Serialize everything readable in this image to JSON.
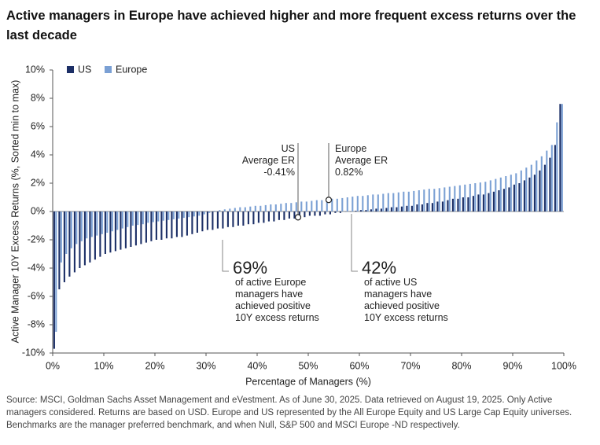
{
  "chart_data": {
    "type": "bar",
    "title": "Active managers in Europe have achieved higher and more frequent excess returns over the last decade",
    "footnote": "Source: MSCI, Goldman Sachs Asset Management and eVestment. As of June 30, 2025. Data retrieved on August 19, 2025. Only Active managers considered. Returns are based on USD. Europe and US represented by the All Europe Equity and US Large Cap Equity universes. Benchmarks are the manager preferred benchmark, and when Null, S&P 500 and MSCI Europe -ND respectively.",
    "x_label": "Percentage of Managers (%)",
    "y_label": "Active Manager 10Y Excess Returns (%, Sorted min to max)",
    "legend": "top-left",
    "xlim": [
      0,
      100
    ],
    "xticks": [
      {
        "value": 0,
        "label": "0%"
      },
      {
        "value": 10,
        "label": "10%"
      },
      {
        "value": 20,
        "label": "20%"
      },
      {
        "value": 30,
        "label": "30%"
      },
      {
        "value": 40,
        "label": "40%"
      },
      {
        "value": 50,
        "label": "50%"
      },
      {
        "value": 60,
        "label": "60%"
      },
      {
        "value": 70,
        "label": "70%"
      },
      {
        "value": 80,
        "label": "80%"
      },
      {
        "value": 90,
        "label": "90%"
      },
      {
        "value": 100,
        "label": "100%"
      }
    ],
    "ylim": [
      -10,
      10
    ],
    "yticks": [
      {
        "value": -10,
        "label": "-10%"
      },
      {
        "value": -8,
        "label": "-8%"
      },
      {
        "value": -6,
        "label": "-6%"
      },
      {
        "value": -4,
        "label": "-4%"
      },
      {
        "value": -2,
        "label": "-2%"
      },
      {
        "value": 0,
        "label": "0%"
      },
      {
        "value": 2,
        "label": "2%"
      },
      {
        "value": 4,
        "label": "4%"
      },
      {
        "value": 6,
        "label": "6%"
      },
      {
        "value": 8,
        "label": "8%"
      },
      {
        "value": 10,
        "label": "10%"
      }
    ],
    "x": [
      0.5,
      1.5,
      2.5,
      3.5,
      4.5,
      5.5,
      6.5,
      7.5,
      8.5,
      9.5,
      10.5,
      11.5,
      12.5,
      13.5,
      14.5,
      15.5,
      16.5,
      17.5,
      18.5,
      19.5,
      20.5,
      21.5,
      22.5,
      23.5,
      24.5,
      25.5,
      26.5,
      27.5,
      28.5,
      29.5,
      30.5,
      31.5,
      32.5,
      33.5,
      34.5,
      35.5,
      36.5,
      37.5,
      38.5,
      39.5,
      40.5,
      41.5,
      42.5,
      43.5,
      44.5,
      45.5,
      46.5,
      47.5,
      48.5,
      49.5,
      50.5,
      51.5,
      52.5,
      53.5,
      54.5,
      55.5,
      56.5,
      57.5,
      58.5,
      59.5,
      60.5,
      61.5,
      62.5,
      63.5,
      64.5,
      65.5,
      66.5,
      67.5,
      68.5,
      69.5,
      70.5,
      71.5,
      72.5,
      73.5,
      74.5,
      75.5,
      76.5,
      77.5,
      78.5,
      79.5,
      80.5,
      81.5,
      82.5,
      83.5,
      84.5,
      85.5,
      86.5,
      87.5,
      88.5,
      89.5,
      90.5,
      91.5,
      92.5,
      93.5,
      94.5,
      95.5,
      96.5,
      97.5,
      98.5,
      99.5
    ],
    "series": [
      {
        "name": "US",
        "color": "#1c2f66",
        "values": [
          -9.7,
          -5.5,
          -5.0,
          -4.6,
          -4.3,
          -4.0,
          -3.8,
          -3.6,
          -3.4,
          -3.2,
          -3.0,
          -2.9,
          -2.8,
          -2.7,
          -2.6,
          -2.5,
          -2.4,
          -2.3,
          -2.2,
          -2.1,
          -2.0,
          -2.0,
          -1.9,
          -1.9,
          -1.8,
          -1.8,
          -1.7,
          -1.6,
          -1.5,
          -1.4,
          -1.3,
          -1.3,
          -1.2,
          -1.2,
          -1.1,
          -1.1,
          -1.0,
          -1.0,
          -0.9,
          -0.9,
          -0.8,
          -0.8,
          -0.7,
          -0.7,
          -0.6,
          -0.6,
          -0.5,
          -0.5,
          -0.4,
          -0.4,
          -0.3,
          -0.3,
          -0.3,
          -0.2,
          -0.2,
          -0.1,
          -0.1,
          0.0,
          0.0,
          0.05,
          0.1,
          0.1,
          0.15,
          0.2,
          0.2,
          0.25,
          0.3,
          0.3,
          0.35,
          0.4,
          0.4,
          0.5,
          0.5,
          0.6,
          0.6,
          0.7,
          0.7,
          0.8,
          0.9,
          0.9,
          1.0,
          1.0,
          1.1,
          1.2,
          1.2,
          1.3,
          1.4,
          1.5,
          1.6,
          1.7,
          1.9,
          2.0,
          2.2,
          2.4,
          2.6,
          2.9,
          3.3,
          3.8,
          4.7,
          7.6
        ]
      },
      {
        "name": "Europe",
        "color": "#7ba0d4",
        "values": [
          -8.5,
          -3.6,
          -3.0,
          -2.6,
          -2.3,
          -2.1,
          -1.9,
          -1.8,
          -1.7,
          -1.6,
          -1.5,
          -1.4,
          -1.3,
          -1.2,
          -1.1,
          -1.0,
          -0.95,
          -0.9,
          -0.8,
          -0.75,
          -0.7,
          -0.65,
          -0.6,
          -0.55,
          -0.5,
          -0.45,
          -0.4,
          -0.35,
          -0.3,
          -0.2,
          -0.1,
          0.05,
          0.1,
          0.15,
          0.2,
          0.25,
          0.3,
          0.3,
          0.35,
          0.4,
          0.4,
          0.45,
          0.5,
          0.5,
          0.55,
          0.6,
          0.6,
          0.65,
          0.7,
          0.7,
          0.75,
          0.8,
          0.8,
          0.85,
          0.9,
          0.9,
          0.95,
          1.0,
          1.05,
          1.1,
          1.1,
          1.15,
          1.2,
          1.2,
          1.25,
          1.3,
          1.3,
          1.35,
          1.4,
          1.4,
          1.45,
          1.5,
          1.55,
          1.6,
          1.6,
          1.65,
          1.7,
          1.75,
          1.8,
          1.85,
          1.9,
          1.95,
          2.0,
          2.05,
          2.1,
          2.2,
          2.3,
          2.4,
          2.5,
          2.6,
          2.7,
          2.9,
          3.1,
          3.3,
          3.6,
          3.9,
          4.3,
          4.7,
          6.3,
          7.6
        ]
      }
    ],
    "annotations": [
      {
        "lines": [
          "US",
          "Average ER",
          "-0.41%"
        ],
        "x": 48,
        "y": -0.41
      },
      {
        "lines": [
          "Europe",
          "Average ER",
          "0.82%"
        ],
        "x": 54,
        "y": 0.82
      }
    ],
    "callouts": [
      {
        "headline": "69%",
        "lines": [
          "of active Europe",
          "managers have",
          "achieved positive",
          "10Y excess returns"
        ]
      },
      {
        "headline": "42%",
        "lines": [
          "of active US",
          "managers have",
          "achieved positive",
          "10Y excess returns"
        ]
      }
    ]
  }
}
